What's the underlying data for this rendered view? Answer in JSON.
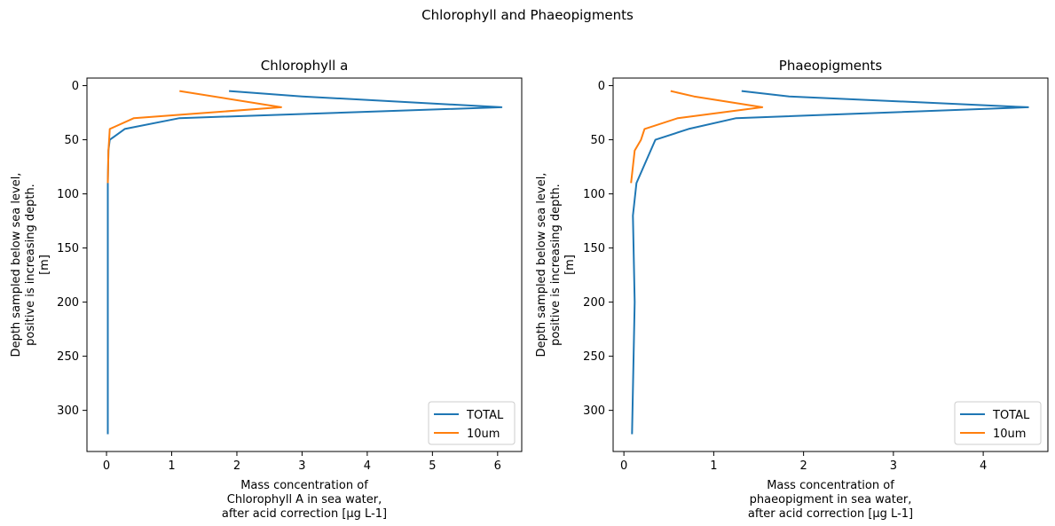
{
  "suptitle": "Chlorophyll and Phaeopigments",
  "chart_data": [
    {
      "type": "line",
      "title": "Chlorophyll a",
      "xlabel": [
        "Mass concentration of",
        "Chlorophyll A in sea water,",
        "after acid correction [µg L-1]"
      ],
      "ylabel": [
        "Depth sampled below sea level,",
        "positive is increasing depth.",
        "[m]"
      ],
      "xlim": [
        -0.3,
        6.37
      ],
      "ylim": [
        338,
        -7
      ],
      "y_inverted": true,
      "xticks": [
        0,
        1,
        2,
        3,
        4,
        5,
        6
      ],
      "yticks": [
        0,
        50,
        100,
        150,
        200,
        250,
        300
      ],
      "legend_position": "lower right",
      "series": [
        {
          "name": "TOTAL",
          "color": "#1f77b4",
          "points": [
            [
              1.88,
              5
            ],
            [
              3.0,
              10
            ],
            [
              6.06,
              20
            ],
            [
              1.12,
              30
            ],
            [
              0.28,
              40
            ],
            [
              0.05,
              50
            ],
            [
              0.03,
              60
            ],
            [
              0.02,
              90
            ],
            [
              0.02,
              120
            ],
            [
              0.02,
              200
            ],
            [
              0.02,
              322
            ]
          ]
        },
        {
          "name": "10um",
          "color": "#ff7f0e",
          "points": [
            [
              1.12,
              5
            ],
            [
              2.68,
              20
            ],
            [
              0.42,
              30
            ],
            [
              0.05,
              40
            ],
            [
              0.04,
              50
            ],
            [
              0.03,
              60
            ],
            [
              0.02,
              90
            ]
          ]
        }
      ]
    },
    {
      "type": "line",
      "title": "Phaeopigments",
      "xlabel": [
        "Mass concentration of",
        "phaeopigment in sea water,",
        "after acid correction [µg L-1]"
      ],
      "ylabel": [
        "Depth sampled below sea level,",
        "positive is increasing depth.",
        "[m]"
      ],
      "xlim": [
        -0.12,
        4.72
      ],
      "ylim": [
        338,
        -7
      ],
      "y_inverted": true,
      "xticks": [
        0,
        1,
        2,
        3,
        4
      ],
      "yticks": [
        0,
        50,
        100,
        150,
        200,
        250,
        300
      ],
      "legend_position": "lower right",
      "series": [
        {
          "name": "TOTAL",
          "color": "#1f77b4",
          "points": [
            [
              1.31,
              5
            ],
            [
              1.84,
              10
            ],
            [
              4.5,
              20
            ],
            [
              1.25,
              30
            ],
            [
              0.72,
              40
            ],
            [
              0.35,
              50
            ],
            [
              0.14,
              90
            ],
            [
              0.1,
              120
            ],
            [
              0.12,
              200
            ],
            [
              0.09,
              322
            ]
          ]
        },
        {
          "name": "10um",
          "color": "#ff7f0e",
          "points": [
            [
              0.52,
              5
            ],
            [
              0.78,
              10
            ],
            [
              1.54,
              20
            ],
            [
              0.6,
              30
            ],
            [
              0.23,
              40
            ],
            [
              0.19,
              50
            ],
            [
              0.12,
              60
            ],
            [
              0.08,
              90
            ]
          ]
        }
      ]
    }
  ]
}
